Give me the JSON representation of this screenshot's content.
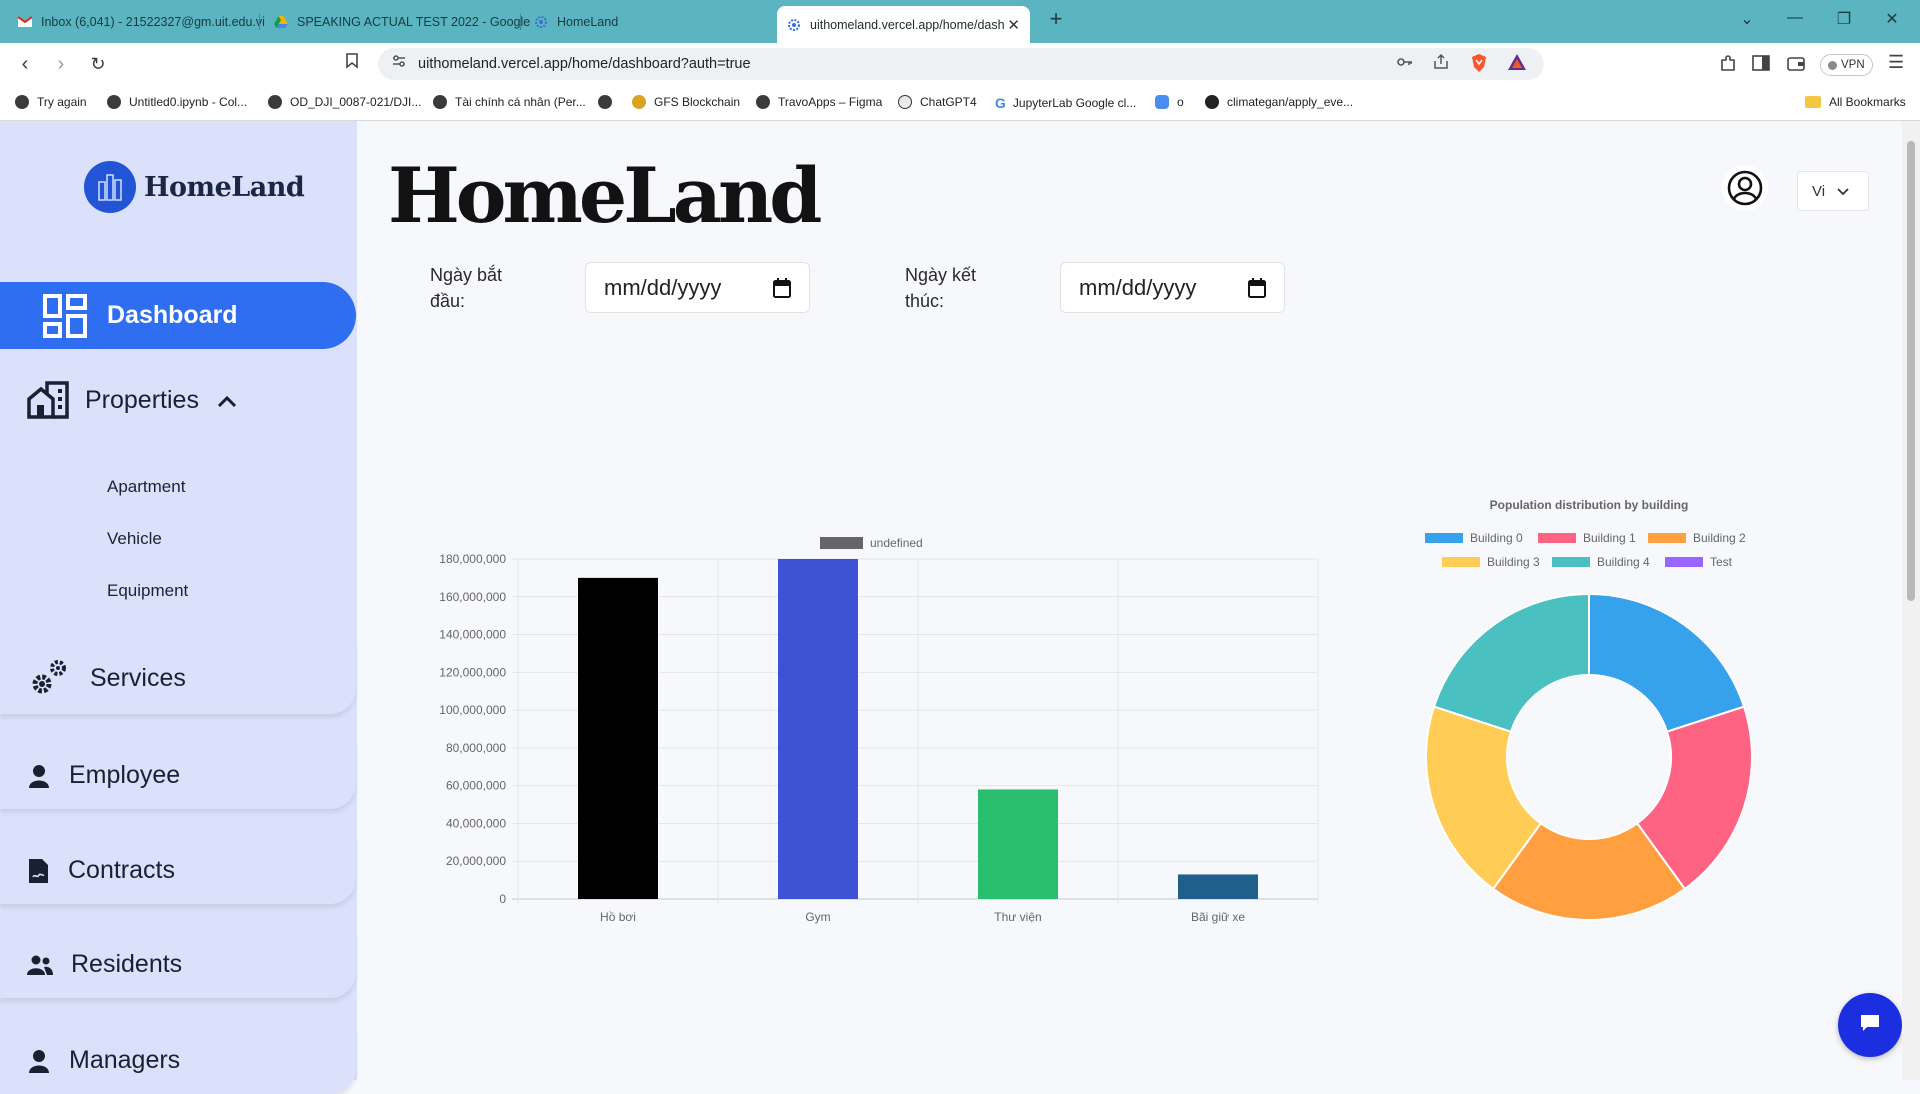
{
  "browser": {
    "tabs": [
      {
        "label": "Inbox (6,041) - 21522327@gm.uit.edu.vi",
        "icon": "gmail-icon"
      },
      {
        "label": "SPEAKING ACTUAL TEST 2022 - Google",
        "icon": "drive-icon"
      },
      {
        "label": "HomeLand",
        "icon": "gear-icon"
      },
      {
        "label": "uithomeland.vercel.app/home/dash",
        "icon": "gear-icon",
        "active": true
      }
    ],
    "url": "uithomeland.vercel.app/home/dashboard?auth=true",
    "vpn_label": "VPN",
    "new_tab": "+",
    "bookmarks": [
      "Try again",
      "Untitled0.ipynb - Col...",
      "OD_DJI_0087-021/DJI...",
      "Tài chính cá nhân (Per...",
      "",
      "GFS Blockchain",
      "TravoApps – Figma",
      "ChatGPT4",
      "JupyterLab Google cl...",
      "o",
      "climategan/apply_eve..."
    ],
    "all_bookmarks": "All Bookmarks"
  },
  "sidebar": {
    "brand": "HomeLand",
    "items": [
      {
        "label": "Dashboard",
        "icon": "dashboard-grid-icon",
        "active": true
      },
      {
        "label": "Properties",
        "icon": "building-icon",
        "expanded": true
      },
      {
        "label": "Services",
        "icon": "gears-icon"
      },
      {
        "label": "Employee",
        "icon": "person-icon"
      },
      {
        "label": "Contracts",
        "icon": "contract-icon"
      },
      {
        "label": "Residents",
        "icon": "people-icon"
      },
      {
        "label": "Managers",
        "icon": "person-icon"
      }
    ],
    "properties_sub": [
      "Apartment",
      "Vehicle",
      "Equipment"
    ]
  },
  "header": {
    "title": "HomeLand",
    "language": "Vi"
  },
  "filters": {
    "start_label": "Ngày bắt đầu:",
    "start_placeholder": "mm/dd/yyyy",
    "end_label": "Ngày kết thúc:",
    "end_placeholder": "mm/dd/yyyy"
  },
  "chart_data": [
    {
      "type": "bar",
      "legend": [
        "undefined"
      ],
      "legend_color": "#666666",
      "categories": [
        "Hồ bơi",
        "Gym",
        "Thư viện",
        "Bãi giữ xe"
      ],
      "values": [
        170000000,
        180000000,
        58000000,
        13000000
      ],
      "colors": [
        "#000000",
        "#3d52d5",
        "#2abf6f",
        "#1f5f8b"
      ],
      "ylim": [
        0,
        180000000
      ],
      "yticks": [
        "0",
        "20,000,000",
        "40,000,000",
        "60,000,000",
        "80,000,000",
        "100,000,000",
        "120,000,000",
        "140,000,000",
        "160,000,000",
        "180,000,000"
      ],
      "grid": true
    },
    {
      "type": "pie",
      "title": "Population distribution by building",
      "labels": [
        "Building 0",
        "Building 1",
        "Building 2",
        "Building 3",
        "Building 4",
        "Test"
      ],
      "values": [
        1,
        1,
        1,
        1,
        1,
        0
      ],
      "colors": [
        "#36a2eb",
        "#ff6384",
        "#ff9f40",
        "#ffcd56",
        "#4bc0c0",
        "#9966ff"
      ],
      "legend_position": "top"
    }
  ]
}
